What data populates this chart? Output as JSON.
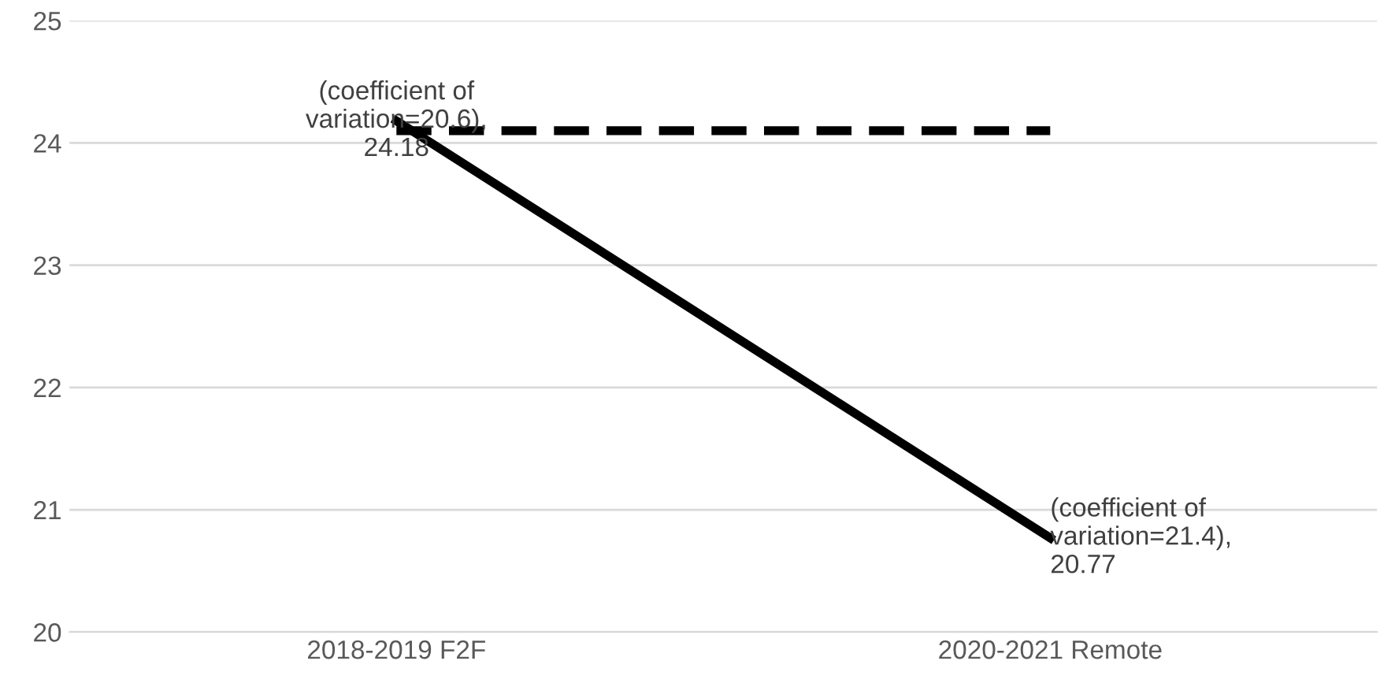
{
  "chart_data": {
    "type": "line",
    "categories": [
      "2018-2019 F2F",
      "2020-2021 Remote"
    ],
    "series": [
      {
        "color": "#000000",
        "values": [
          24.18,
          20.77
        ],
        "line_style": "solid",
        "value_labels": [
          "(coefficient of\nvariation=20.6),\n24.18",
          "(coefficient of\nvariation=21.4),\n20.77"
        ]
      },
      {
        "color": "#000000",
        "values": [
          24.1,
          24.1
        ],
        "line_style": "dashed"
      }
    ],
    "ylim": [
      20,
      25
    ],
    "yticks": [
      20,
      21,
      22,
      23,
      24,
      25
    ],
    "grid": "y",
    "legend": false,
    "marker": "none"
  }
}
